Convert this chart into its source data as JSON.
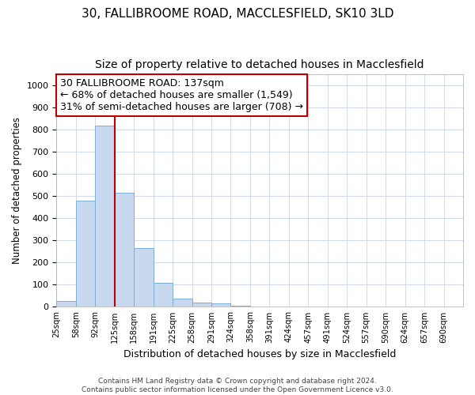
{
  "title_line1": "30, FALLIBROOME ROAD, MACCLESFIELD, SK10 3LD",
  "title_line2": "Size of property relative to detached houses in Macclesfield",
  "xlabel": "Distribution of detached houses by size in Macclesfield",
  "ylabel": "Number of detached properties",
  "footnote": "Contains HM Land Registry data © Crown copyright and database right 2024.\nContains public sector information licensed under the Open Government Licence v3.0.",
  "annotation_line1": "30 FALLIBROOME ROAD: 137sqm",
  "annotation_line2": "← 68% of detached houses are smaller (1,549)",
  "annotation_line3": "31% of semi-detached houses are larger (708) →",
  "bar_color": "#c8d8ee",
  "bar_edge_color": "#7bafd4",
  "vline_color": "#c00000",
  "vline_x": 3.0,
  "categories": [
    "25sqm",
    "58sqm",
    "92sqm",
    "125sqm",
    "158sqm",
    "191sqm",
    "225sqm",
    "258sqm",
    "291sqm",
    "324sqm",
    "358sqm",
    "391sqm",
    "424sqm",
    "457sqm",
    "491sqm",
    "524sqm",
    "557sqm",
    "590sqm",
    "624sqm",
    "657sqm",
    "690sqm"
  ],
  "bar_heights": [
    28,
    480,
    820,
    515,
    265,
    110,
    38,
    20,
    15,
    5,
    0,
    0,
    0,
    0,
    0,
    0,
    0,
    0,
    0,
    0,
    0
  ],
  "ylim": [
    0,
    1050
  ],
  "yticks": [
    0,
    100,
    200,
    300,
    400,
    500,
    600,
    700,
    800,
    900,
    1000
  ],
  "background_color": "#ffffff",
  "grid_color": "#c8d4e8",
  "title_fontsize": 11,
  "subtitle_fontsize": 10,
  "annotation_box_color": "#ffffff",
  "annotation_box_edge": "#c00000",
  "annotation_fontsize": 9
}
